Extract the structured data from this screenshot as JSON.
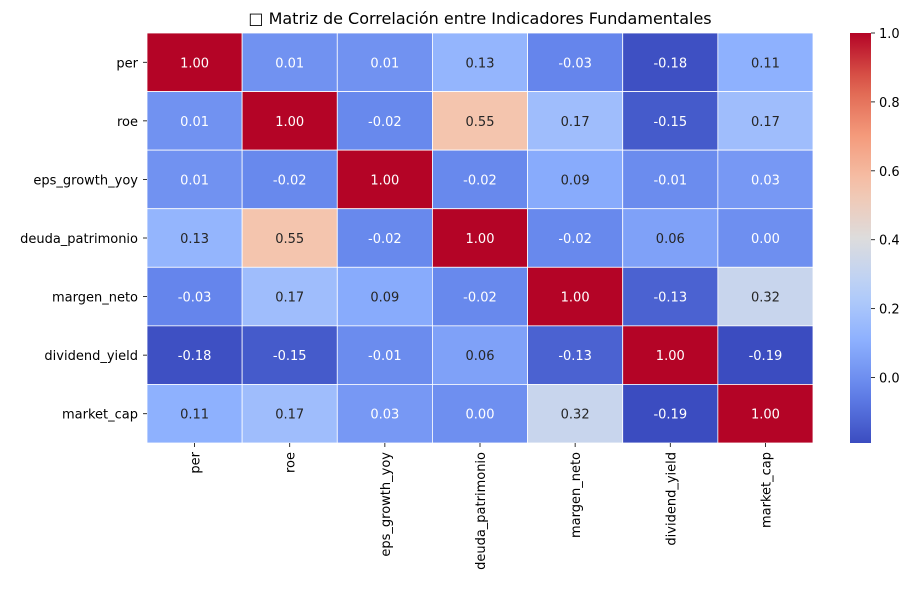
{
  "chart_data": {
    "type": "heatmap",
    "title": "□ Matriz de Correlación entre Indicadores Fundamentales",
    "rows": [
      "per",
      "roe",
      "eps_growth_yoy",
      "deuda_patrimonio",
      "margen_neto",
      "dividend_yield",
      "market_cap"
    ],
    "columns": [
      "per",
      "roe",
      "eps_growth_yoy",
      "deuda_patrimonio",
      "margen_neto",
      "dividend_yield",
      "market_cap"
    ],
    "values": [
      [
        1.0,
        0.01,
        0.01,
        0.13,
        -0.03,
        -0.18,
        0.11
      ],
      [
        0.01,
        1.0,
        -0.02,
        0.55,
        0.17,
        -0.15,
        0.17
      ],
      [
        0.01,
        -0.02,
        1.0,
        -0.02,
        0.09,
        -0.01,
        0.03
      ],
      [
        0.13,
        0.55,
        -0.02,
        1.0,
        -0.02,
        0.06,
        0.0
      ],
      [
        -0.03,
        0.17,
        0.09,
        -0.02,
        1.0,
        -0.13,
        0.32
      ],
      [
        -0.18,
        -0.15,
        -0.01,
        0.06,
        -0.13,
        1.0,
        -0.19
      ],
      [
        0.11,
        0.17,
        0.03,
        0.0,
        0.32,
        -0.19,
        1.0
      ]
    ],
    "labels": [
      [
        "1.00",
        "0.01",
        "0.01",
        "0.13",
        "-0.03",
        "-0.18",
        "0.11"
      ],
      [
        "0.01",
        "1.00",
        "-0.02",
        "0.55",
        "0.17",
        "-0.15",
        "0.17"
      ],
      [
        "0.01",
        "-0.02",
        "1.00",
        "-0.02",
        "0.09",
        "-0.01",
        "0.03"
      ],
      [
        "0.13",
        "0.55",
        "-0.02",
        "1.00",
        "-0.02",
        "0.06",
        "0.00"
      ],
      [
        "-0.03",
        "0.17",
        "0.09",
        "-0.02",
        "1.00",
        "-0.13",
        "0.32"
      ],
      [
        "-0.18",
        "-0.15",
        "-0.01",
        "0.06",
        "-0.13",
        "1.00",
        "-0.19"
      ],
      [
        "0.11",
        "0.17",
        "0.03",
        "0.00",
        "0.32",
        "-0.19",
        "1.00"
      ]
    ],
    "colormap": "coolwarm",
    "vmin": -0.19,
    "vmax": 1.0,
    "colorbar_ticks": [
      0.0,
      0.2,
      0.4,
      0.6,
      0.8,
      1.0
    ],
    "colorbar_tick_labels": [
      "0.0",
      "0.2",
      "0.4",
      "0.6",
      "0.8",
      "1.0"
    ],
    "colorbar_placement": "right",
    "cell_border_color": "#ffffff"
  }
}
